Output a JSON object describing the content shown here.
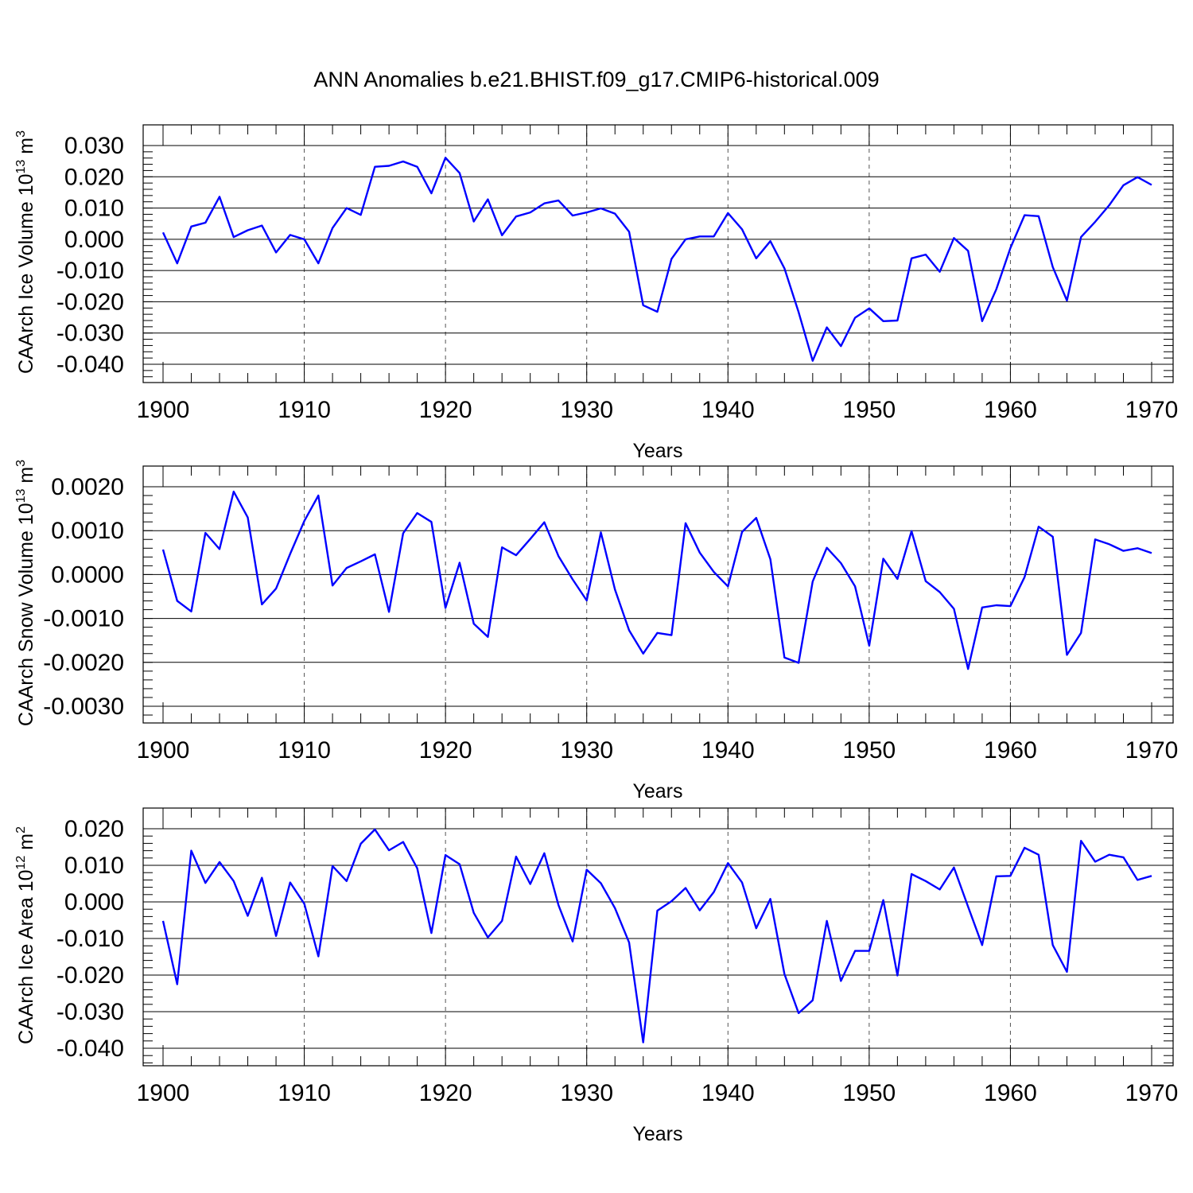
{
  "figure": {
    "title": "ANN Anomalies b.e21.BHIST.f09_g17.CMIP6-historical.009",
    "line_color": "#0000ff"
  },
  "chart_data": [
    {
      "type": "line",
      "title": "",
      "xlabel": "Years",
      "ylabel": "CAArch Ice Volume 10",
      "ylabel_exp": "13",
      "ylabel_unit": "m",
      "ylabel_unit_exp": "3",
      "xlim": [
        1900,
        1970
      ],
      "ylim": [
        -0.04,
        0.03
      ],
      "xticks": [
        "1900",
        "1910",
        "1920",
        "1930",
        "1940",
        "1950",
        "1960",
        "1970"
      ],
      "yticks": [
        {
          "value": 0.03,
          "label": "0.030"
        },
        {
          "value": 0.02,
          "label": "0.020"
        },
        {
          "value": 0.01,
          "label": "0.010"
        },
        {
          "value": 0.0,
          "label": "0.000"
        },
        {
          "value": -0.01,
          "label": "-0.010"
        },
        {
          "value": -0.02,
          "label": "-0.020"
        },
        {
          "value": -0.03,
          "label": "-0.030"
        },
        {
          "value": -0.04,
          "label": "-0.040"
        }
      ],
      "grid": "vertical dashed at decades",
      "x": [
        1900,
        1901,
        1902,
        1903,
        1904,
        1905,
        1906,
        1907,
        1908,
        1909,
        1910,
        1911,
        1912,
        1913,
        1914,
        1915,
        1916,
        1917,
        1918,
        1919,
        1920,
        1921,
        1922,
        1923,
        1924,
        1925,
        1926,
        1927,
        1928,
        1929,
        1930,
        1931,
        1932,
        1933,
        1934,
        1935,
        1936,
        1937,
        1938,
        1939,
        1940,
        1941,
        1942,
        1943,
        1944,
        1945,
        1946,
        1947,
        1948,
        1949,
        1950,
        1951,
        1952,
        1953,
        1954,
        1955,
        1956,
        1957,
        1958,
        1959,
        1960,
        1961,
        1962,
        1963,
        1964,
        1965,
        1966,
        1967,
        1968,
        1969,
        1970
      ],
      "series": [
        {
          "values": [
            0.0022,
            -0.0077,
            0.0041,
            0.0053,
            0.0136,
            0.0007,
            0.0029,
            0.0044,
            -0.0042,
            0.0014,
            0.0,
            -0.0077,
            0.0036,
            0.01,
            0.0078,
            0.0232,
            0.0235,
            0.0249,
            0.0232,
            0.0147,
            0.0261,
            0.0212,
            0.0057,
            0.0128,
            0.0013,
            0.0073,
            0.0086,
            0.0115,
            0.0124,
            0.0076,
            0.0086,
            0.0099,
            0.0082,
            0.0024,
            -0.0211,
            -0.0232,
            -0.0063,
            0.0,
            0.0009,
            0.0009,
            0.0084,
            0.0032,
            -0.0061,
            -0.0006,
            -0.0093,
            -0.0233,
            -0.0389,
            -0.0282,
            -0.0342,
            -0.0251,
            -0.0221,
            -0.0262,
            -0.026,
            -0.0061,
            -0.0049,
            -0.0104,
            0.0004,
            -0.0037,
            -0.0262,
            -0.016,
            -0.0028,
            0.0077,
            0.0074,
            -0.0089,
            -0.0196,
            0.0007,
            0.0056,
            0.0109,
            0.0173,
            0.0199,
            0.0174
          ]
        }
      ]
    },
    {
      "type": "line",
      "title": "",
      "xlabel": "Years",
      "ylabel": "CAArch Snow Volume 10",
      "ylabel_exp": "13",
      "ylabel_unit": "m",
      "ylabel_unit_exp": "3",
      "xlim": [
        1900,
        1970
      ],
      "ylim": [
        -0.003,
        0.002
      ],
      "xticks": [
        "1900",
        "1910",
        "1920",
        "1930",
        "1940",
        "1950",
        "1960",
        "1970"
      ],
      "yticks": [
        {
          "value": 0.002,
          "label": "0.0020"
        },
        {
          "value": 0.001,
          "label": "0.0010"
        },
        {
          "value": 0.0,
          "label": "0.0000"
        },
        {
          "value": -0.001,
          "label": "-0.0010"
        },
        {
          "value": -0.002,
          "label": "-0.0020"
        },
        {
          "value": -0.003,
          "label": "-0.0030"
        }
      ],
      "grid": "vertical dashed at decades",
      "x": [
        1900,
        1901,
        1902,
        1903,
        1904,
        1905,
        1906,
        1907,
        1908,
        1909,
        1910,
        1911,
        1912,
        1913,
        1914,
        1915,
        1916,
        1917,
        1918,
        1919,
        1920,
        1921,
        1922,
        1923,
        1924,
        1925,
        1926,
        1927,
        1928,
        1929,
        1930,
        1931,
        1932,
        1933,
        1934,
        1935,
        1936,
        1937,
        1938,
        1939,
        1940,
        1941,
        1942,
        1943,
        1944,
        1945,
        1946,
        1947,
        1948,
        1949,
        1950,
        1951,
        1952,
        1953,
        1954,
        1955,
        1956,
        1957,
        1958,
        1959,
        1960,
        1961,
        1962,
        1963,
        1964,
        1965,
        1966,
        1967,
        1968,
        1969,
        1970
      ],
      "series": [
        {
          "values": [
            0.00057,
            -0.0006,
            -0.00084,
            0.00095,
            0.00058,
            0.00189,
            0.0013,
            -0.00068,
            -0.00032,
            0.00047,
            0.00122,
            0.0018,
            -0.00025,
            0.00015,
            0.0003,
            0.00046,
            -0.00085,
            0.00094,
            0.0014,
            0.0012,
            -0.00076,
            0.00027,
            -0.00112,
            -0.00142,
            0.00062,
            0.00044,
            0.00081,
            0.00119,
            0.00042,
            -0.00011,
            -0.00059,
            0.00096,
            -0.00034,
            -0.00127,
            -0.0018,
            -0.00133,
            -0.00138,
            0.00117,
            0.0005,
            6e-05,
            -0.00027,
            0.00097,
            0.00129,
            0.00035,
            -0.00189,
            -0.00201,
            -0.00016,
            0.00061,
            0.00026,
            -0.00027,
            -0.00162,
            0.00036,
            -0.0001,
            0.00099,
            -0.00015,
            -0.0004,
            -0.00078,
            -0.00215,
            -0.00075,
            -0.0007,
            -0.00072,
            -6e-05,
            0.00109,
            0.00086,
            -0.00183,
            -0.00133,
            0.0008,
            0.00069,
            0.00054,
            0.0006,
            0.00049
          ]
        }
      ]
    },
    {
      "type": "line",
      "title": "",
      "xlabel": "Years",
      "ylabel": "CAArch Ice Area 10",
      "ylabel_exp": "12",
      "ylabel_unit": "m",
      "ylabel_unit_exp": "2",
      "xlim": [
        1900,
        1970
      ],
      "ylim": [
        -0.04,
        0.02
      ],
      "xticks": [
        "1900",
        "1910",
        "1920",
        "1930",
        "1940",
        "1950",
        "1960",
        "1970"
      ],
      "yticks": [
        {
          "value": 0.02,
          "label": "0.020"
        },
        {
          "value": 0.01,
          "label": "0.010"
        },
        {
          "value": 0.0,
          "label": "0.000"
        },
        {
          "value": -0.01,
          "label": "-0.010"
        },
        {
          "value": -0.02,
          "label": "-0.020"
        },
        {
          "value": -0.03,
          "label": "-0.030"
        },
        {
          "value": -0.04,
          "label": "-0.040"
        }
      ],
      "grid": "vertical dashed at decades",
      "x": [
        1900,
        1901,
        1902,
        1903,
        1904,
        1905,
        1906,
        1907,
        1908,
        1909,
        1910,
        1911,
        1912,
        1913,
        1914,
        1915,
        1916,
        1917,
        1918,
        1919,
        1920,
        1921,
        1922,
        1923,
        1924,
        1925,
        1926,
        1927,
        1928,
        1929,
        1930,
        1931,
        1932,
        1933,
        1934,
        1935,
        1936,
        1937,
        1938,
        1939,
        1940,
        1941,
        1942,
        1943,
        1944,
        1945,
        1946,
        1947,
        1948,
        1949,
        1950,
        1951,
        1952,
        1953,
        1954,
        1955,
        1956,
        1957,
        1958,
        1959,
        1960,
        1961,
        1962,
        1963,
        1964,
        1965,
        1966,
        1967,
        1968,
        1969,
        1970
      ],
      "series": [
        {
          "values": [
            -0.0052,
            -0.0225,
            0.014,
            0.0052,
            0.0109,
            0.0057,
            -0.0038,
            0.0066,
            -0.0093,
            0.0053,
            -0.0005,
            -0.0149,
            0.0098,
            0.0057,
            0.0159,
            0.0198,
            0.0141,
            0.0164,
            0.0092,
            -0.0085,
            0.0128,
            0.0103,
            -0.003,
            -0.0097,
            -0.0052,
            0.0124,
            0.0049,
            0.0133,
            -0.0009,
            -0.0108,
            0.0088,
            0.0051,
            -0.0017,
            -0.0111,
            -0.0384,
            -0.0024,
            0.0002,
            0.0038,
            -0.0023,
            0.0027,
            0.0106,
            0.0053,
            -0.0072,
            0.0008,
            -0.0197,
            -0.0304,
            -0.0269,
            -0.0052,
            -0.0216,
            -0.0134,
            -0.0134,
            0.0005,
            -0.0201,
            0.0076,
            0.0057,
            0.0034,
            0.0094,
            -0.0013,
            -0.0118,
            0.007,
            0.0071,
            0.0148,
            0.0129,
            -0.0118,
            -0.0191,
            0.0167,
            0.011,
            0.0129,
            0.0122,
            0.006,
            0.0071
          ]
        }
      ]
    }
  ]
}
